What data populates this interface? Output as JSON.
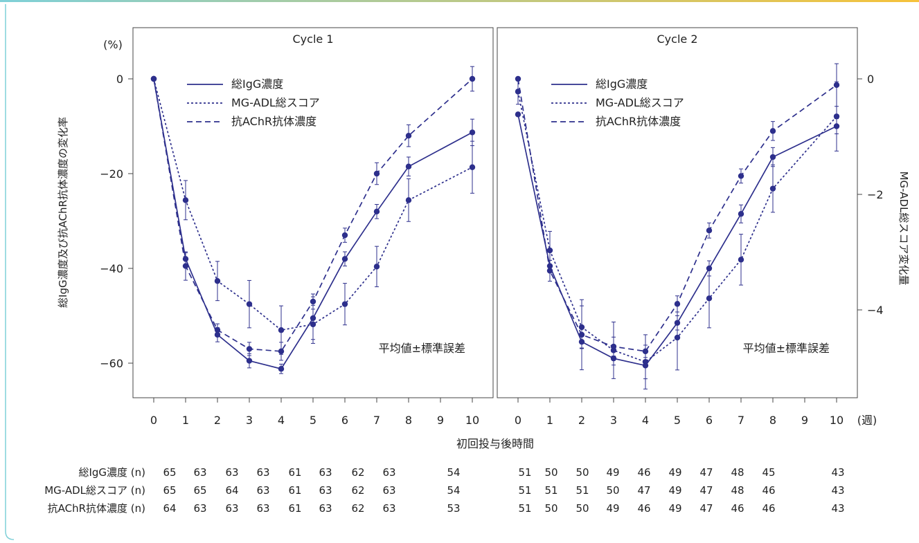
{
  "chart_data": {
    "type": "line",
    "panels": [
      {
        "title": "Cycle 1",
        "x": [
          0,
          1,
          2,
          3,
          4,
          5,
          6,
          7,
          8,
          10
        ],
        "series": [
          {
            "name": "総IgG濃度",
            "axis": "left",
            "values": [
              0,
              -38,
              -54,
              -59.5,
              -61.2,
              -50.5,
              -38,
              -28,
              -18.5,
              -11.3
            ]
          },
          {
            "name": "MG-ADL総スコア",
            "axis": "right",
            "values": [
              0,
              -2.1,
              -3.5,
              -3.9,
              -4.35,
              -4.25,
              -3.9,
              -3.25,
              -2.1,
              -1.53
            ]
          },
          {
            "name": "抗AChR抗体濃度",
            "axis": "left",
            "values": [
              0,
              -39.5,
              -53,
              -57,
              -57.5,
              -47,
              -33,
              -20,
              -12,
              0
            ]
          }
        ],
        "error": [
          [
            0,
            1.3,
            1.5,
            1.5,
            1,
            4.5,
            1.5,
            1.5,
            2,
            2.8
          ],
          [
            0,
            0.34,
            0.34,
            0.41,
            0.42,
            0.33,
            0.36,
            0.35,
            0.37,
            0.45
          ],
          [
            0,
            3,
            1.3,
            1.4,
            1.9,
            1.6,
            1.5,
            2.3,
            2.3,
            2.6
          ]
        ]
      },
      {
        "title": "Cycle 2",
        "x": [
          0,
          1,
          2,
          3,
          4,
          5,
          6,
          7,
          8,
          10
        ],
        "series": [
          {
            "name": "総IgG濃度",
            "axis": "left",
            "values": [
              -7.5,
              -39.5,
              -55.5,
              -59,
              -60.5,
              -51.5,
              -40,
              -28.5,
              -16.5,
              -10
            ]
          },
          {
            "name": "MG-ADL総スコア",
            "axis": "right",
            "values": [
              -0.22,
              -2.97,
              -4.3,
              -4.7,
              -4.9,
              -4.48,
              -3.8,
              -3.13,
              -1.9,
              -0.65
            ]
          },
          {
            "name": "抗AChR抗体濃度",
            "axis": "left",
            "values": [
              0,
              -40.5,
              -54,
              -56.5,
              -57.5,
              -47.5,
              -32,
              -20.5,
              -11,
              -1.3
            ]
          }
        ],
        "error": [
          [
            0,
            1.2,
            1.3,
            1.4,
            2.8,
            1.5,
            1.6,
            1.9,
            2,
            1.6
          ],
          [
            0.22,
            0.33,
            0.37,
            0.49,
            0.47,
            0.56,
            0.51,
            0.44,
            0.41,
            0.6
          ],
          [
            0,
            2.2,
            7.4,
            2,
            1.3,
            1.7,
            1.6,
            1.5,
            2,
            4.5
          ]
        ]
      }
    ],
    "left_axis": {
      "label": "総IgG濃度及び抗AChR抗体濃度の変化率",
      "unit": "(%)",
      "ticks": [
        0,
        -20,
        -40,
        -60
      ],
      "range": [
        -67,
        0
      ]
    },
    "right_axis": {
      "label": "MG-ADL総スコア変化量",
      "ticks": [
        0,
        -2,
        -4
      ],
      "range": [
        -5.5,
        0
      ]
    },
    "x_axis": {
      "label": "初回投与後時間",
      "unit": "(週)",
      "ticks": [
        0,
        1,
        2,
        3,
        4,
        5,
        6,
        7,
        8,
        9,
        10
      ]
    },
    "legend": {
      "placement": "top-left of each panel",
      "labels": [
        "総IgG濃度",
        "MG-ADL総スコア",
        "抗AChR抗体濃度"
      ]
    },
    "annotation": "平均値±標準誤差",
    "color": "#2d2f8c",
    "n_table": {
      "rows": [
        {
          "label": "総IgG濃度 (n)",
          "cycle1": [
            "65",
            "63",
            "63",
            "63",
            "61",
            "63",
            "62",
            "63",
            "",
            "54"
          ],
          "cycle2": [
            "51",
            "50",
            "50",
            "49",
            "46",
            "49",
            "47",
            "48",
            "45",
            "",
            "43"
          ]
        },
        {
          "label": "MG-ADL総スコア (n)",
          "cycle1": [
            "65",
            "65",
            "64",
            "63",
            "61",
            "63",
            "62",
            "63",
            "",
            "54"
          ],
          "cycle2": [
            "51",
            "51",
            "51",
            "50",
            "47",
            "49",
            "47",
            "48",
            "46",
            "",
            "43"
          ]
        },
        {
          "label": "抗AChR抗体濃度 (n)",
          "cycle1": [
            "64",
            "63",
            "63",
            "63",
            "61",
            "63",
            "62",
            "63",
            "",
            "53"
          ],
          "cycle2": [
            "51",
            "50",
            "50",
            "49",
            "46",
            "49",
            "47",
            "46",
            "46",
            "",
            "43"
          ]
        }
      ]
    }
  }
}
